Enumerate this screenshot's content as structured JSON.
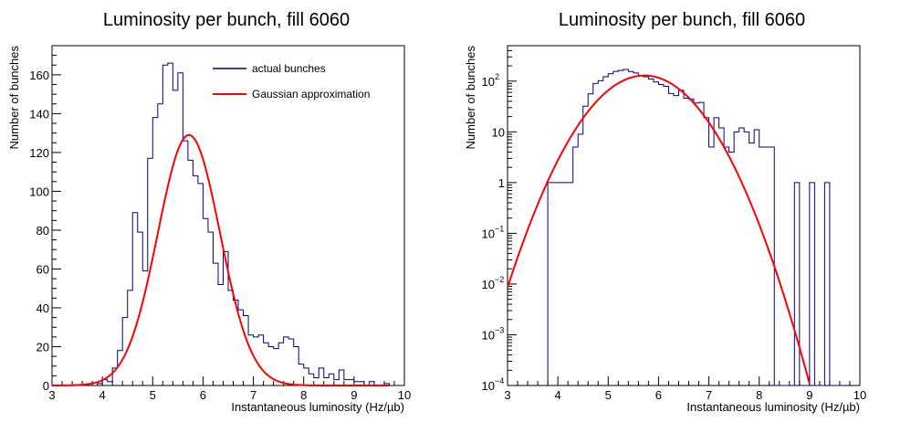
{
  "chart_data": [
    {
      "type": "histogram",
      "title": "Luminosity per bunch, fill 6060",
      "xlabel": "Instantaneous luminosity (Hz/µb)",
      "ylabel": "Number of bunches",
      "xlim": [
        3,
        10
      ],
      "ylim": [
        0,
        175
      ],
      "yscale": "linear",
      "xticks": [
        3,
        4,
        5,
        6,
        7,
        8,
        9,
        10
      ],
      "yticks": [
        0,
        20,
        40,
        60,
        80,
        100,
        120,
        140,
        160
      ],
      "grid": false,
      "legend_position": "top-right",
      "legend": [
        {
          "label": "actual bunches",
          "color": "#000080"
        },
        {
          "label": "Gaussian approximation",
          "color": "#ff0000"
        }
      ],
      "series": [
        {
          "name": "actual bunches",
          "kind": "step-histogram",
          "color": "#000080",
          "bin_width": 0.1,
          "x_start": 3.7,
          "values": [
            1,
            0,
            1,
            3,
            2,
            9,
            18,
            35,
            49,
            89,
            79,
            59,
            117,
            138,
            145,
            165,
            166,
            152,
            161,
            126,
            116,
            108,
            104,
            86,
            79,
            63,
            52,
            69,
            49,
            44,
            39,
            36,
            26,
            25,
            26,
            22,
            20,
            19,
            22,
            25,
            24,
            20,
            11,
            9,
            6,
            4,
            9,
            4,
            6,
            3,
            8,
            3,
            3,
            2,
            2,
            0,
            2,
            0,
            0,
            1
          ]
        },
        {
          "name": "Gaussian approximation",
          "kind": "gaussian",
          "color": "#ff0000",
          "amplitude": 129,
          "mean": 5.72,
          "sigma": 0.62,
          "x_range": [
            3.0,
            9.7
          ]
        }
      ]
    },
    {
      "type": "histogram",
      "title": "Luminosity per bunch, fill 6060",
      "xlabel": "Instantaneous luminosity (Hz/µb)",
      "ylabel": "Number of bunches",
      "xlim": [
        3,
        10
      ],
      "ylim": [
        0.0001,
        500
      ],
      "yscale": "log",
      "xticks": [
        3,
        4,
        5,
        6,
        7,
        8,
        9,
        10
      ],
      "ytick_labels": {
        "p2": "10",
        "p1": "10",
        "p0": "1",
        "m1": "10",
        "m2": "10",
        "m3": "10",
        "m4": "10",
        "e2": "2",
        "em1": "−1",
        "em2": "−2",
        "em3": "−3",
        "em4": "−4"
      },
      "grid": false,
      "series": [
        {
          "name": "actual bunches",
          "kind": "step-histogram",
          "color": "#000080",
          "bin_width": 0.1,
          "x_start": 3.8,
          "values": [
            1,
            1,
            1,
            1,
            1,
            5,
            9,
            32,
            56,
            90,
            102,
            122,
            140,
            156,
            162,
            170,
            155,
            145,
            128,
            122,
            110,
            96,
            86,
            79,
            57,
            52,
            66,
            46,
            44,
            37,
            38,
            19,
            5,
            19,
            12,
            5,
            4,
            10,
            12,
            10,
            6,
            11,
            5,
            5,
            5,
            0,
            0,
            0,
            0.0001,
            1,
            0.0001,
            0,
            1,
            0,
            0.0001,
            1,
            0,
            0,
            0
          ]
        },
        {
          "name": "Gaussian approximation",
          "kind": "gaussian",
          "color": "#ff0000",
          "amplitude": 129,
          "mean": 5.72,
          "sigma": 0.62,
          "x_range": [
            3.0,
            9.9
          ]
        }
      ]
    }
  ]
}
